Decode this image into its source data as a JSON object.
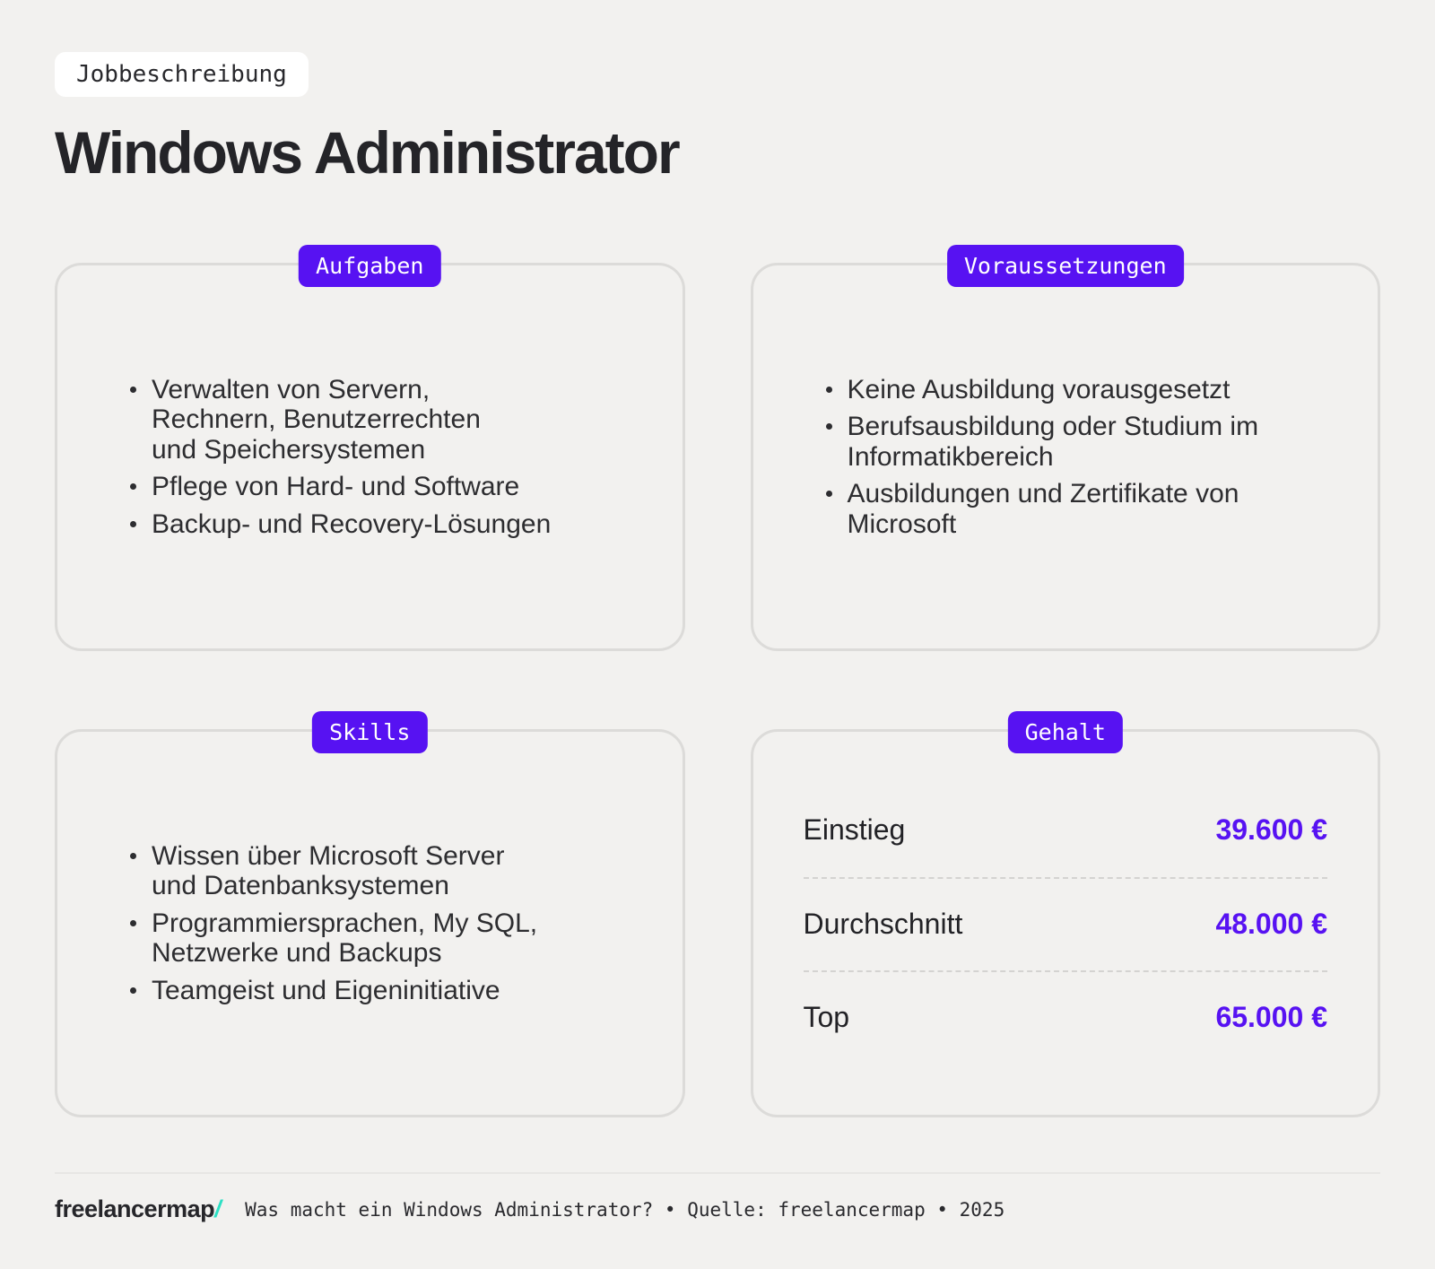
{
  "header": {
    "eyebrow": "Jobbeschreibung",
    "title": "Windows Administrator"
  },
  "cards": [
    {
      "badge": "Aufgaben",
      "bullets": [
        "Verwalten von Servern,\nRechnern, Benutzerrechten\nund Speichersystemen",
        "Pflege von Hard- und Software",
        "Backup- und Recovery-Lösungen"
      ]
    },
    {
      "badge": "Voraussetzungen",
      "bullets": [
        "Keine Ausbildung vorausgesetzt",
        "Berufsausbildung oder Studium im\nInformatikbereich",
        "Ausbildungen und Zertifikate von\nMicrosoft"
      ]
    },
    {
      "badge": "Skills",
      "bullets": [
        "Wissen über Microsoft Server\nund Datenbanksystemen",
        "Programmiersprachen, My SQL,\nNetzwerke und Backups",
        "Teamgeist und Eigeninitiative"
      ]
    },
    {
      "badge": "Gehalt",
      "rows": [
        {
          "label": "Einstieg",
          "value": "39.600 €"
        },
        {
          "label": "Durchschnitt",
          "value": "48.000 €"
        },
        {
          "label": "Top",
          "value": "65.000 €"
        }
      ]
    }
  ],
  "footer": {
    "logo": "freelancermap",
    "logo_slash": "/",
    "caption": "Was macht ein Windows Administrator? • Quelle: freelancermap • 2025"
  },
  "colors": {
    "accent_purple": "#5712f2",
    "logo_teal": "#2ce0c4",
    "background": "#f2f1ef",
    "card_border": "#dcdbd9"
  }
}
